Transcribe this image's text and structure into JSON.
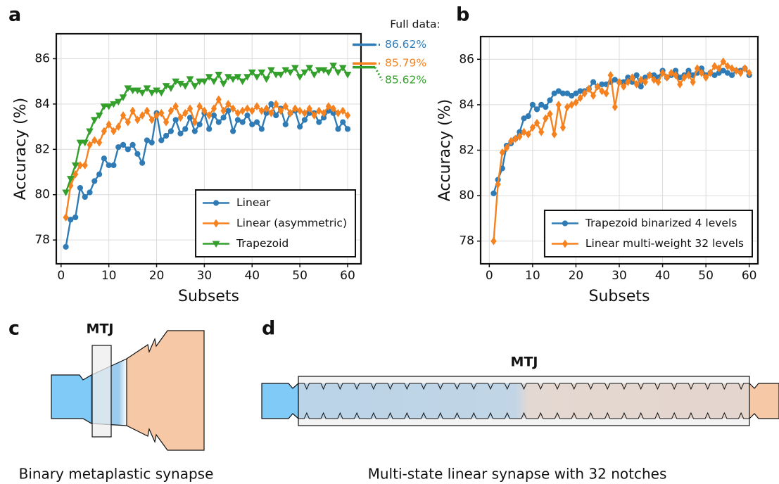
{
  "chart_data": [
    {
      "type": "line",
      "panel_label": "a",
      "xlabel": "Subsets",
      "ylabel": "Accuracy (%)",
      "x": [
        1,
        2,
        3,
        4,
        5,
        6,
        7,
        8,
        9,
        10,
        11,
        12,
        13,
        14,
        15,
        16,
        17,
        18,
        19,
        20,
        21,
        22,
        23,
        24,
        25,
        26,
        27,
        28,
        29,
        30,
        31,
        32,
        33,
        34,
        35,
        36,
        37,
        38,
        39,
        40,
        41,
        42,
        43,
        44,
        45,
        46,
        47,
        48,
        49,
        50,
        51,
        52,
        53,
        54,
        55,
        56,
        57,
        58,
        59,
        60
      ],
      "xlim": [
        -1,
        62.8
      ],
      "xticks": [
        0,
        10,
        20,
        30,
        40,
        50,
        60
      ],
      "ylim": [
        76.95,
        87.1
      ],
      "yticks": [
        78,
        80,
        82,
        84,
        86
      ],
      "grid": true,
      "legend": "lower right",
      "series": [
        {
          "name": "Linear",
          "color": "#2f7bb6",
          "marker": "circle",
          "values": [
            77.7,
            78.9,
            79.0,
            80.3,
            79.9,
            80.1,
            80.6,
            80.9,
            81.6,
            81.3,
            81.3,
            82.1,
            82.2,
            82.0,
            82.2,
            81.8,
            81.4,
            82.4,
            82.3,
            83.6,
            82.4,
            82.6,
            82.8,
            83.3,
            82.7,
            82.9,
            83.4,
            82.8,
            83.1,
            83.6,
            82.9,
            83.5,
            83.2,
            83.4,
            83.7,
            82.8,
            83.3,
            83.2,
            83.5,
            83.1,
            83.2,
            82.9,
            83.6,
            84.0,
            83.5,
            83.8,
            83.1,
            83.6,
            83.7,
            83.0,
            83.3,
            83.6,
            83.6,
            83.2,
            83.4,
            83.7,
            83.6,
            82.9,
            83.2,
            82.9
          ]
        },
        {
          "name": "Linear (asymmetric)",
          "color": "#f5821f",
          "marker": "diamond",
          "values": [
            79.0,
            80.4,
            80.9,
            81.3,
            81.3,
            82.2,
            82.4,
            82.3,
            82.8,
            83.1,
            82.8,
            83.0,
            83.5,
            83.2,
            83.7,
            83.3,
            83.5,
            83.7,
            83.3,
            83.5,
            83.6,
            83.2,
            83.7,
            83.9,
            83.4,
            83.6,
            83.8,
            83.2,
            83.9,
            83.7,
            83.5,
            83.8,
            84.2,
            83.7,
            84.0,
            83.8,
            83.6,
            83.7,
            83.8,
            83.7,
            83.9,
            83.7,
            83.8,
            83.6,
            84.0,
            83.7,
            83.9,
            83.6,
            83.8,
            83.7,
            83.6,
            83.8,
            83.5,
            83.7,
            83.6,
            83.9,
            83.8,
            83.6,
            83.7,
            83.5
          ]
        },
        {
          "name": "Trapezoid",
          "color": "#34a02c",
          "marker": "triangle-down",
          "values": [
            80.1,
            80.7,
            81.3,
            82.3,
            82.3,
            82.8,
            83.3,
            83.5,
            83.9,
            83.9,
            84.0,
            84.1,
            84.3,
            84.7,
            84.6,
            84.6,
            84.5,
            84.7,
            84.5,
            84.6,
            84.5,
            84.8,
            84.7,
            85.0,
            84.9,
            84.8,
            85.1,
            84.8,
            85.0,
            85.0,
            85.2,
            85.0,
            85.3,
            84.9,
            85.2,
            85.1,
            85.2,
            85.0,
            85.2,
            85.4,
            85.2,
            85.4,
            85.1,
            85.5,
            85.3,
            85.3,
            85.5,
            85.4,
            85.6,
            85.2,
            85.4,
            85.6,
            85.3,
            85.5,
            85.5,
            85.4,
            85.7,
            85.4,
            85.6,
            85.3
          ]
        }
      ],
      "full_data": {
        "title": "Full data:",
        "values": [
          86.62,
          85.79,
          85.62
        ],
        "value_labels": [
          "86.62%",
          "85.79%",
          "85.62%"
        ],
        "colors": [
          "#2f7bb6",
          "#f5821f",
          "#34a02c"
        ]
      }
    },
    {
      "type": "line",
      "panel_label": "b",
      "xlabel": "Subsets",
      "ylabel": "Accuracy (%)",
      "x": [
        1,
        2,
        3,
        4,
        5,
        6,
        7,
        8,
        9,
        10,
        11,
        12,
        13,
        14,
        15,
        16,
        17,
        18,
        19,
        20,
        21,
        22,
        23,
        24,
        25,
        26,
        27,
        28,
        29,
        30,
        31,
        32,
        33,
        34,
        35,
        36,
        37,
        38,
        39,
        40,
        41,
        42,
        43,
        44,
        45,
        46,
        47,
        48,
        49,
        50,
        51,
        52,
        53,
        54,
        55,
        56,
        57,
        58,
        59,
        60
      ],
      "xlim": [
        -2,
        62
      ],
      "xticks": [
        0,
        10,
        20,
        30,
        40,
        50,
        60
      ],
      "ylim": [
        77,
        87
      ],
      "yticks": [
        78,
        80,
        82,
        84,
        86
      ],
      "grid": true,
      "legend": "lower right",
      "series": [
        {
          "name": "Trapezoid binarized 4 levels",
          "color": "#2f7bb6",
          "marker": "circle",
          "values": [
            80.1,
            80.7,
            81.2,
            82.2,
            82.3,
            82.5,
            82.8,
            83.4,
            83.5,
            84.0,
            83.8,
            84.0,
            83.9,
            84.2,
            84.5,
            84.6,
            84.5,
            84.5,
            84.4,
            84.5,
            84.6,
            84.6,
            84.7,
            85.0,
            84.8,
            84.9,
            84.9,
            85.0,
            85.1,
            85.0,
            85.0,
            85.2,
            85.0,
            85.3,
            84.8,
            85.2,
            85.3,
            85.3,
            85.2,
            85.5,
            85.2,
            85.3,
            85.5,
            85.2,
            85.3,
            85.5,
            85.3,
            85.4,
            85.6,
            85.3,
            85.4,
            85.3,
            85.4,
            85.5,
            85.4,
            85.3,
            85.5,
            85.5,
            85.6,
            85.3
          ]
        },
        {
          "name": "Linear multi-weight 32 levels",
          "color": "#f5821f",
          "marker": "diamond",
          "values": [
            78.0,
            80.5,
            81.9,
            82.1,
            82.4,
            82.5,
            82.6,
            82.8,
            82.7,
            83.0,
            83.2,
            82.8,
            83.4,
            83.6,
            82.7,
            84.0,
            83.0,
            83.9,
            84.0,
            84.1,
            84.3,
            84.5,
            84.7,
            84.4,
            84.8,
            84.6,
            84.5,
            85.3,
            83.9,
            85.0,
            84.8,
            85.0,
            85.2,
            84.9,
            85.1,
            85.0,
            85.3,
            85.1,
            85.0,
            85.4,
            85.2,
            85.4,
            85.3,
            84.9,
            85.2,
            85.3,
            85.0,
            85.6,
            85.4,
            85.2,
            85.4,
            85.7,
            85.6,
            85.9,
            85.7,
            85.6,
            85.5,
            85.4,
            85.6,
            85.4
          ]
        }
      ]
    }
  ],
  "panel_c": {
    "label": "c",
    "device": "MTJ",
    "caption": "Binary metaplastic synapse"
  },
  "panel_d": {
    "label": "d",
    "device": "MTJ",
    "caption": "Multi-state linear synapse with 32 notches"
  }
}
